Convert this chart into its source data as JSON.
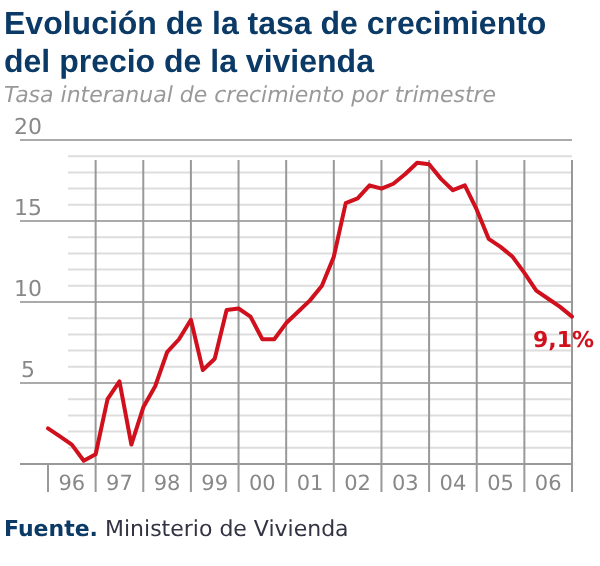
{
  "chart_data": {
    "type": "line",
    "title": "Evolución de la tasa de crecimiento del precio de la vivienda",
    "subtitle": "Tasa interanual de crecimiento por trimestre",
    "annotations": [
      "Fuente. Ministerio de Vivienda"
    ],
    "categories": [
      null,
      null,
      "96",
      null,
      null,
      null,
      "97",
      null,
      null,
      null,
      "98",
      null,
      null,
      null,
      "99",
      null,
      null,
      null,
      "00",
      null,
      null,
      null,
      "01",
      null,
      null,
      null,
      "02",
      null,
      null,
      null,
      "03",
      null,
      null,
      null,
      "04",
      null,
      null,
      null,
      "05",
      null,
      null,
      null,
      "06",
      null,
      null
    ],
    "series": [
      {
        "color": "#d0101c",
        "values": [
          2.2,
          1.7,
          1.2,
          0.2,
          0.6,
          4.0,
          5.1,
          1.2,
          3.5,
          4.8,
          6.9,
          7.7,
          8.9,
          5.8,
          6.5,
          9.5,
          9.6,
          9.1,
          7.7,
          7.7,
          8.7,
          9.4,
          10.1,
          11.0,
          12.8,
          16.1,
          16.4,
          17.2,
          17.0,
          17.3,
          17.9,
          18.6,
          18.5,
          17.6,
          16.9,
          17.2,
          15.7,
          13.9,
          13.4,
          12.8,
          11.8,
          10.7,
          10.2,
          9.7,
          9.1
        ],
        "value_labels": [
          null,
          null,
          null,
          null,
          null,
          null,
          null,
          null,
          null,
          null,
          null,
          null,
          null,
          null,
          null,
          null,
          null,
          null,
          null,
          null,
          null,
          null,
          null,
          null,
          null,
          null,
          null,
          null,
          null,
          null,
          null,
          null,
          null,
          null,
          null,
          null,
          null,
          null,
          null,
          null,
          null,
          null,
          null,
          null,
          "9,1%"
        ]
      }
    ],
    "ylim": [
      0,
      20
    ],
    "yticks": [
      {
        "value": 0,
        "label": null
      },
      {
        "value": 1,
        "label": null
      },
      {
        "value": 2,
        "label": null
      },
      {
        "value": 3,
        "label": null
      },
      {
        "value": 4,
        "label": null
      },
      5,
      {
        "value": 6,
        "label": null
      },
      {
        "value": 7,
        "label": null
      },
      {
        "value": 8,
        "label": null
      },
      {
        "value": 9,
        "label": null
      },
      10,
      {
        "value": 11,
        "label": null
      },
      {
        "value": 12,
        "label": null
      },
      {
        "value": 13,
        "label": null
      },
      {
        "value": 14,
        "label": null
      },
      15,
      {
        "value": 16,
        "label": null
      },
      {
        "value": 17,
        "label": null
      },
      {
        "value": 18,
        "label": null
      },
      {
        "value": 19,
        "label": null
      },
      20
    ],
    "grid": true,
    "marker": "none",
    "line_style": "solid"
  }
}
